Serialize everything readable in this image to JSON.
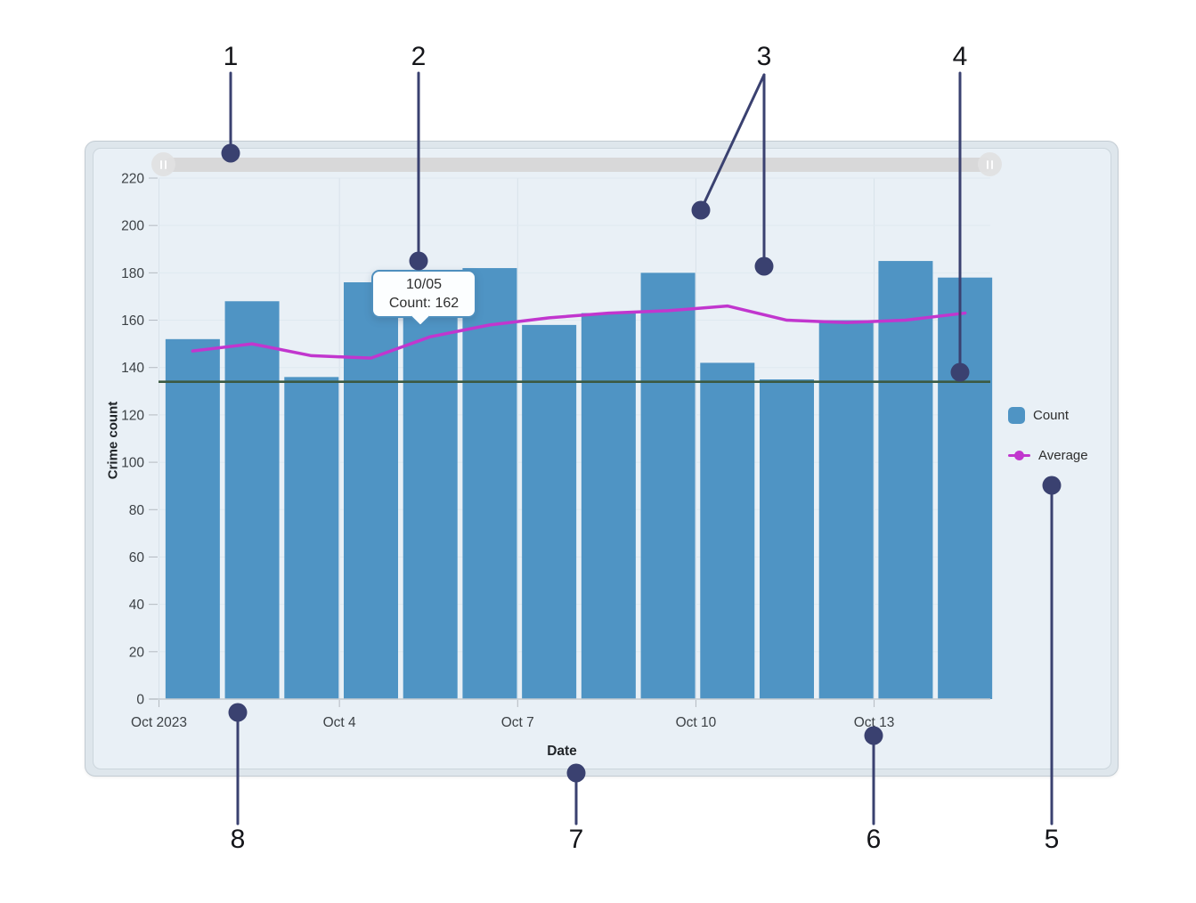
{
  "chart_data": {
    "type": "bar",
    "title": "",
    "xlabel": "Date",
    "ylabel": "Crime count",
    "ylim": [
      0,
      220
    ],
    "ytick_step": 20,
    "grid": true,
    "legend_position": "right",
    "x": [
      "10/01",
      "10/02",
      "10/03",
      "10/04",
      "10/05",
      "10/06",
      "10/07",
      "10/08",
      "10/09",
      "10/10",
      "10/11",
      "10/12",
      "10/13",
      "10/14"
    ],
    "x_ticks": [
      {
        "index": 0,
        "label": "Oct 2023"
      },
      {
        "index": 3,
        "label": "Oct 4"
      },
      {
        "index": 6,
        "label": "Oct 7"
      },
      {
        "index": 9,
        "label": "Oct 10"
      },
      {
        "index": 12,
        "label": "Oct 13"
      }
    ],
    "series": [
      {
        "name": "Count",
        "type": "bar",
        "color": "#4f94c4",
        "values": [
          152,
          168,
          136,
          176,
          162,
          182,
          158,
          163,
          180,
          142,
          135,
          160,
          185,
          178
        ]
      },
      {
        "name": "Average",
        "type": "line",
        "color": "#c136ce",
        "values": [
          147,
          150,
          145,
          144,
          153,
          158,
          161,
          163,
          164,
          166,
          160,
          159,
          160,
          163
        ]
      }
    ],
    "reference_line": {
      "value": 134,
      "color": "#3c5a42"
    }
  },
  "tooltip": {
    "title": "10/05",
    "value": "Count: 162"
  },
  "legend": {
    "items": [
      {
        "label": "Count",
        "swatch": "bar",
        "color": "#4f94c4"
      },
      {
        "label": "Average",
        "swatch": "line-dot",
        "color": "#c136ce"
      }
    ]
  },
  "axes": {
    "y_title": "Crime count",
    "x_title": "Date"
  },
  "scrollbar": {
    "grip_icon": "double-bar-grip"
  },
  "annotations": {
    "labels": [
      "1",
      "2",
      "3",
      "4",
      "5",
      "6",
      "7",
      "8"
    ],
    "color": "#3a4170"
  },
  "colors": {
    "panel_background": "#dee6ec",
    "surface_background": "#e9f0f6",
    "tooltip_border": "#4e8fbe",
    "axis_text": "#3c4145"
  }
}
